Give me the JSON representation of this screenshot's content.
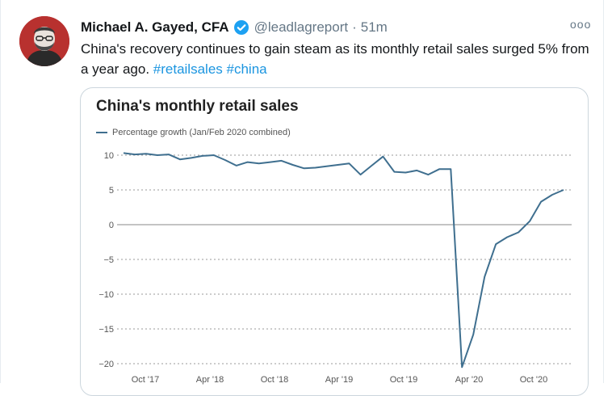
{
  "tweet": {
    "author_name": "Michael A. Gayed, CFA",
    "handle": "@leadlagreport",
    "separator": "·",
    "time": "51m",
    "more": "ooo",
    "text": "China's recovery continues to gain steam as its monthly retail sales surged 5% from a year ago. ",
    "hashtags": [
      "#retailsales",
      "#china"
    ],
    "colors": {
      "link": "#1b95e0",
      "verified": "#1da1f2",
      "line": "#3f6f8f"
    }
  },
  "chart_data": {
    "type": "line",
    "title": "China's monthly retail sales",
    "xlabel": "",
    "ylabel": "",
    "ylim": [
      -20,
      11
    ],
    "yticks": [
      10,
      5,
      0,
      -5,
      -10,
      -15,
      -20
    ],
    "grid": "horizontal dotted",
    "legend_placement": "top-left",
    "series": [
      {
        "name": "Percentage growth (Jan/Feb 2020 combined)",
        "values": [
          10.3,
          10.1,
          10.2,
          10.0,
          10.1,
          9.4,
          9.6,
          9.9,
          10.0,
          9.3,
          8.5,
          9.0,
          8.8,
          9.0,
          9.2,
          8.6,
          8.1,
          8.2,
          8.4,
          8.6,
          8.8,
          7.2,
          8.5,
          9.8,
          7.6,
          7.5,
          7.8,
          7.2,
          8.0,
          8.0,
          -20.5,
          -15.8,
          -7.5,
          -2.8,
          -1.8,
          -1.1,
          0.5,
          3.3,
          4.3,
          5.0
        ]
      }
    ],
    "x_tick_labels": [
      "Oct '17",
      "Apr '18",
      "Oct '18",
      "Apr '19",
      "Oct '19",
      "Apr '20",
      "Oct '20"
    ]
  }
}
